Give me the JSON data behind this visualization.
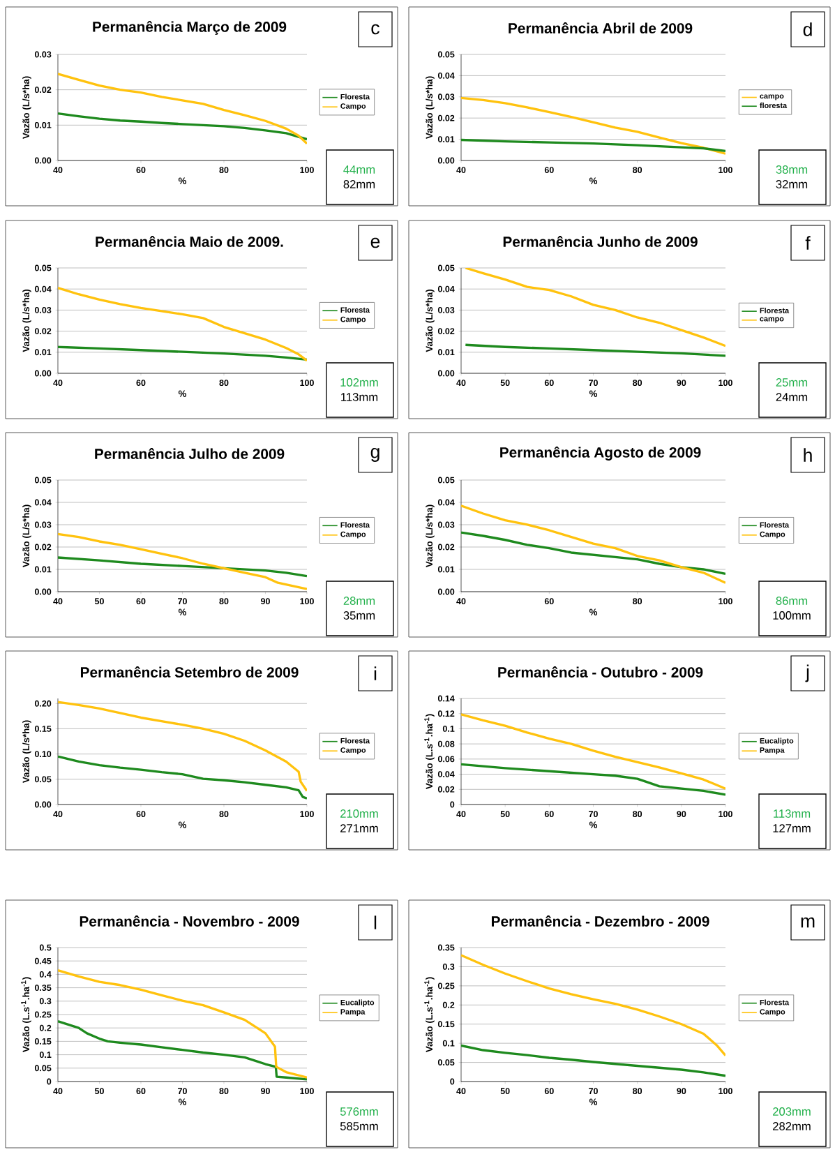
{
  "chart_data": [
    {
      "type": "line",
      "title": "Permanência  Março  de  2009",
      "xlabel": "%",
      "ylabel": "Vazão  (L/s*ha)",
      "xlim": [
        40,
        100
      ],
      "ylim": [
        0,
        0.03
      ],
      "xticks": [
        40,
        60,
        80,
        100
      ],
      "yticks": [
        {
          "value": 0,
          "label": "0.00"
        },
        {
          "value": 0.01,
          "label": "0.01"
        },
        {
          "value": 0.02,
          "label": "0.02"
        },
        {
          "value": 0.03,
          "label": "0.03"
        }
      ],
      "grid": "y",
      "legend": "right",
      "annotations": [
        "c",
        "44mm",
        "82mm"
      ],
      "series": [
        {
          "name": "Floresta",
          "color": "#1e8a1e",
          "x": [
            40,
            45,
            50,
            55,
            60,
            65,
            70,
            75,
            80,
            85,
            90,
            95,
            100
          ],
          "values": [
            0.0133,
            0.0125,
            0.0118,
            0.0113,
            0.011,
            0.0106,
            0.0103,
            0.01,
            0.0097,
            0.0092,
            0.0085,
            0.0077,
            0.006
          ]
        },
        {
          "name": "Campo",
          "color": "#ffc20e",
          "x": [
            40,
            45,
            50,
            55,
            60,
            65,
            70,
            75,
            80,
            85,
            90,
            95,
            98,
            100
          ],
          "values": [
            0.0245,
            0.0228,
            0.0212,
            0.02,
            0.0192,
            0.018,
            0.017,
            0.016,
            0.0143,
            0.0128,
            0.0112,
            0.009,
            0.007,
            0.0048
          ]
        }
      ]
    },
    {
      "type": "line",
      "title": "Permanência  Abril  de  2009",
      "xlabel": "%",
      "ylabel": "Vazão  (L/s*ha)",
      "xlim": [
        40,
        100
      ],
      "ylim": [
        0,
        0.05
      ],
      "xticks": [
        40,
        60,
        80,
        100
      ],
      "yticks": [
        {
          "value": 0,
          "label": "0.00"
        },
        {
          "value": 0.01,
          "label": "0.01"
        },
        {
          "value": 0.02,
          "label": "0.02"
        },
        {
          "value": 0.03,
          "label": "0.03"
        },
        {
          "value": 0.04,
          "label": "0.04"
        },
        {
          "value": 0.05,
          "label": "0.05"
        }
      ],
      "grid": "y",
      "legend": "right",
      "annotations": [
        "d",
        "38mm",
        "32mm"
      ],
      "series": [
        {
          "name": "campo",
          "color": "#ffc20e",
          "x": [
            40,
            45,
            50,
            55,
            60,
            65,
            70,
            75,
            80,
            85,
            90,
            95,
            100
          ],
          "values": [
            0.0295,
            0.0285,
            0.027,
            0.025,
            0.0228,
            0.0205,
            0.018,
            0.0155,
            0.0135,
            0.0108,
            0.0082,
            0.006,
            0.0032
          ]
        },
        {
          "name": "floresta",
          "color": "#1e8a1e",
          "x": [
            40,
            50,
            60,
            70,
            80,
            90,
            95,
            100
          ],
          "values": [
            0.0097,
            0.009,
            0.0085,
            0.008,
            0.0072,
            0.0062,
            0.0057,
            0.0045
          ]
        }
      ]
    },
    {
      "type": "line",
      "title": "Permanência  Maio  de  2009.",
      "xlabel": "%",
      "ylabel": "Vazão  (L/s*ha)",
      "xlim": [
        40,
        100
      ],
      "ylim": [
        0,
        0.05
      ],
      "xticks": [
        40,
        60,
        80,
        100
      ],
      "yticks": [
        {
          "value": 0,
          "label": "0.00"
        },
        {
          "value": 0.01,
          "label": "0.01"
        },
        {
          "value": 0.02,
          "label": "0.02"
        },
        {
          "value": 0.03,
          "label": "0.03"
        },
        {
          "value": 0.04,
          "label": "0.04"
        },
        {
          "value": 0.05,
          "label": "0.05"
        }
      ],
      "grid": "y",
      "legend": "right",
      "annotations": [
        "e",
        "102mm",
        "113mm"
      ],
      "series": [
        {
          "name": "Floresta",
          "color": "#1e8a1e",
          "x": [
            40,
            50,
            60,
            70,
            80,
            90,
            95,
            100
          ],
          "values": [
            0.0125,
            0.0118,
            0.011,
            0.0102,
            0.0094,
            0.0083,
            0.0075,
            0.0065
          ]
        },
        {
          "name": "Campo",
          "color": "#ffc20e",
          "x": [
            40,
            45,
            50,
            55,
            60,
            65,
            70,
            75,
            80,
            85,
            90,
            95,
            98,
            100
          ],
          "values": [
            0.0405,
            0.0375,
            0.035,
            0.0328,
            0.031,
            0.0295,
            0.028,
            0.0262,
            0.022,
            0.019,
            0.016,
            0.012,
            0.009,
            0.006
          ]
        }
      ]
    },
    {
      "type": "line",
      "title": "Permanência  Junho  de  2009",
      "xlabel": "%",
      "ylabel": "Vazão  (L/s*ha)",
      "xlim": [
        40,
        100
      ],
      "ylim": [
        0,
        0.05
      ],
      "xticks": [
        40,
        50,
        60,
        70,
        80,
        90,
        100
      ],
      "yticks": [
        {
          "value": 0,
          "label": "0.00"
        },
        {
          "value": 0.01,
          "label": "0.01"
        },
        {
          "value": 0.02,
          "label": "0.02"
        },
        {
          "value": 0.03,
          "label": "0.03"
        },
        {
          "value": 0.04,
          "label": "0.04"
        },
        {
          "value": 0.05,
          "label": "0.05"
        }
      ],
      "grid": "y",
      "legend": "right",
      "annotations": [
        "f",
        "25mm",
        "24mm"
      ],
      "series": [
        {
          "name": "Floresta",
          "color": "#1e8a1e",
          "x": [
            41,
            50,
            60,
            70,
            80,
            90,
            100
          ],
          "values": [
            0.0135,
            0.0125,
            0.0118,
            0.011,
            0.0102,
            0.0095,
            0.0083
          ]
        },
        {
          "name": "campo",
          "color": "#ffc20e",
          "x": [
            41,
            45,
            50,
            55,
            60,
            65,
            70,
            75,
            80,
            85,
            90,
            95,
            100
          ],
          "values": [
            0.05,
            0.0475,
            0.0445,
            0.041,
            0.0395,
            0.0365,
            0.0325,
            0.03,
            0.0265,
            0.024,
            0.0205,
            0.017,
            0.013
          ]
        }
      ]
    },
    {
      "type": "line",
      "title": "Permanência  Julho  de  2009",
      "xlabel": "%",
      "ylabel": "Vazão  (L/s*ha)",
      "xlim": [
        40,
        100
      ],
      "ylim": [
        0,
        0.05
      ],
      "xticks": [
        40,
        50,
        60,
        70,
        80,
        90,
        100
      ],
      "yticks": [
        {
          "value": 0,
          "label": "0.00"
        },
        {
          "value": 0.01,
          "label": "0.01"
        },
        {
          "value": 0.02,
          "label": "0.02"
        },
        {
          "value": 0.03,
          "label": "0.03"
        },
        {
          "value": 0.04,
          "label": "0.04"
        },
        {
          "value": 0.05,
          "label": "0.05"
        }
      ],
      "grid": "y",
      "legend": "right",
      "annotations": [
        "g",
        "28mm",
        "35mm"
      ],
      "series": [
        {
          "name": "Floresta",
          "color": "#1e8a1e",
          "x": [
            40,
            50,
            60,
            70,
            80,
            90,
            95,
            100
          ],
          "values": [
            0.0153,
            0.014,
            0.0125,
            0.0115,
            0.0105,
            0.0095,
            0.0085,
            0.007
          ]
        },
        {
          "name": "Campo",
          "color": "#ffc20e",
          "x": [
            40,
            45,
            50,
            55,
            60,
            65,
            70,
            75,
            80,
            85,
            90,
            93,
            100
          ],
          "values": [
            0.0258,
            0.0245,
            0.0225,
            0.021,
            0.019,
            0.017,
            0.015,
            0.0125,
            0.0105,
            0.0085,
            0.0065,
            0.004,
            0.0012
          ]
        }
      ]
    },
    {
      "type": "line",
      "title": "Permanência  Agosto  de  2009",
      "xlabel": "%",
      "ylabel": "Vazão  (L/s*ha)",
      "xlim": [
        40,
        100
      ],
      "ylim": [
        0,
        0.05
      ],
      "xticks": [
        40,
        60,
        80,
        100
      ],
      "yticks": [
        {
          "value": 0,
          "label": "0.00"
        },
        {
          "value": 0.01,
          "label": "0.01"
        },
        {
          "value": 0.02,
          "label": "0.02"
        },
        {
          "value": 0.03,
          "label": "0.03"
        },
        {
          "value": 0.04,
          "label": "0.04"
        },
        {
          "value": 0.05,
          "label": "0.05"
        }
      ],
      "grid": "y",
      "legend": "right",
      "annotations": [
        "h",
        "86mm",
        "100mm"
      ],
      "series": [
        {
          "name": "Floresta",
          "color": "#1e8a1e",
          "x": [
            40,
            45,
            50,
            55,
            60,
            65,
            70,
            75,
            80,
            85,
            90,
            95,
            100
          ],
          "values": [
            0.0265,
            0.025,
            0.0232,
            0.021,
            0.0195,
            0.0175,
            0.0165,
            0.0155,
            0.0145,
            0.0125,
            0.011,
            0.01,
            0.008
          ]
        },
        {
          "name": "Campo",
          "color": "#ffc20e",
          "x": [
            40,
            45,
            50,
            55,
            60,
            65,
            70,
            75,
            80,
            85,
            90,
            95,
            100
          ],
          "values": [
            0.0385,
            0.035,
            0.032,
            0.03,
            0.0275,
            0.0245,
            0.0215,
            0.0195,
            0.016,
            0.014,
            0.011,
            0.0085,
            0.004
          ]
        }
      ]
    },
    {
      "type": "line",
      "title": "Permanência  Setembro  de  2009",
      "xlabel": "%",
      "ylabel": "Vazão  (L/s*ha)",
      "xlim": [
        40,
        100
      ],
      "ylim": [
        0,
        0.21
      ],
      "xticks": [
        40,
        60,
        80,
        100
      ],
      "yticks": [
        {
          "value": 0,
          "label": "0.00"
        },
        {
          "value": 0.05,
          "label": "0.05"
        },
        {
          "value": 0.1,
          "label": "0.10"
        },
        {
          "value": 0.15,
          "label": "0.15"
        },
        {
          "value": 0.2,
          "label": "0.20"
        }
      ],
      "grid": "y",
      "legend": "right",
      "annotations": [
        "i",
        "210mm",
        "271mm"
      ],
      "series": [
        {
          "name": "Floresta",
          "color": "#1e8a1e",
          "x": [
            40,
            45,
            50,
            55,
            60,
            65,
            70,
            75,
            80,
            85,
            90,
            95,
            98,
            99,
            100
          ],
          "values": [
            0.095,
            0.085,
            0.078,
            0.073,
            0.069,
            0.064,
            0.06,
            0.051,
            0.048,
            0.044,
            0.039,
            0.034,
            0.028,
            0.015,
            0.012
          ]
        },
        {
          "name": "Campo",
          "color": "#ffc20e",
          "x": [
            40,
            45,
            50,
            55,
            60,
            65,
            70,
            75,
            80,
            85,
            90,
            95,
            98,
            98.5,
            100
          ],
          "values": [
            0.203,
            0.197,
            0.19,
            0.181,
            0.172,
            0.165,
            0.158,
            0.15,
            0.14,
            0.126,
            0.107,
            0.085,
            0.065,
            0.045,
            0.027
          ]
        }
      ]
    },
    {
      "type": "line",
      "title": "Permanência  -  Outubro  -  2009",
      "xlabel": "%",
      "ylabel": "Vazão  (L.s$^{-1}$.ha$^{-1}$)",
      "xlim": [
        40,
        100
      ],
      "ylim": [
        0,
        0.14
      ],
      "xticks": [
        40,
        50,
        60,
        70,
        80,
        90,
        100
      ],
      "yticks": [
        0,
        0.02,
        0.04,
        0.06,
        0.08,
        0.1,
        0.12,
        0.14
      ],
      "grid": "y",
      "legend": "right",
      "annotations": [
        "j",
        "113mm",
        "127mm"
      ],
      "series": [
        {
          "name": "Eucalipto",
          "color": "#1e8a1e",
          "x": [
            40,
            50,
            60,
            70,
            75,
            80,
            82,
            85,
            90,
            95,
            100
          ],
          "values": [
            0.053,
            0.048,
            0.044,
            0.04,
            0.038,
            0.034,
            0.03,
            0.024,
            0.021,
            0.018,
            0.013
          ]
        },
        {
          "name": "Pampa",
          "color": "#ffc20e",
          "x": [
            40,
            45,
            50,
            55,
            60,
            65,
            70,
            75,
            80,
            85,
            90,
            95,
            100
          ],
          "values": [
            0.119,
            0.111,
            0.104,
            0.095,
            0.087,
            0.08,
            0.071,
            0.063,
            0.056,
            0.049,
            0.041,
            0.033,
            0.021
          ]
        }
      ]
    },
    {
      "type": "line",
      "title": "Permanência  -  Novembro  -  2009",
      "xlabel": "%",
      "ylabel": "Vazão  (L.s$^{-1}$.ha$^{-1}$)",
      "xlim": [
        40,
        100
      ],
      "ylim": [
        0,
        0.5
      ],
      "xticks": [
        40,
        50,
        60,
        70,
        80,
        90,
        100
      ],
      "yticks": [
        0,
        0.05,
        0.1,
        0.15,
        0.2,
        0.25,
        0.3,
        0.35,
        0.4,
        0.45,
        0.5
      ],
      "grid": "y",
      "legend": "right",
      "annotations": [
        "l",
        "576mm",
        "585mm"
      ],
      "series": [
        {
          "name": "Eucalipto",
          "color": "#1e8a1e",
          "x": [
            40,
            45,
            47,
            50,
            52,
            55,
            60,
            65,
            70,
            75,
            80,
            85,
            88,
            90,
            92.5,
            92.7,
            95,
            100
          ],
          "values": [
            0.225,
            0.2,
            0.18,
            0.16,
            0.15,
            0.145,
            0.138,
            0.128,
            0.118,
            0.108,
            0.1,
            0.09,
            0.075,
            0.065,
            0.055,
            0.018,
            0.015,
            0.008
          ]
        },
        {
          "name": "Pampa",
          "color": "#ffc20e",
          "x": [
            40,
            45,
            50,
            55,
            60,
            65,
            70,
            75,
            80,
            85,
            88,
            90,
            92.3,
            92.6,
            95,
            100
          ],
          "values": [
            0.415,
            0.392,
            0.372,
            0.36,
            0.343,
            0.322,
            0.302,
            0.285,
            0.258,
            0.23,
            0.2,
            0.18,
            0.13,
            0.055,
            0.035,
            0.015
          ]
        }
      ]
    },
    {
      "type": "line",
      "title": "Permanência  -  Dezembro  -  2009",
      "xlabel": "%",
      "ylabel": "Vazão  (L.s$^{-1}$.ha$^{-1}$)",
      "xlim": [
        40,
        100
      ],
      "ylim": [
        0,
        0.35
      ],
      "xticks": [
        40,
        50,
        60,
        70,
        80,
        90,
        100
      ],
      "yticks": [
        0,
        0.05,
        0.1,
        0.15,
        0.2,
        0.25,
        0.3,
        0.35
      ],
      "grid": "y",
      "legend": "right",
      "annotations": [
        "m",
        "203mm",
        "282mm"
      ],
      "series": [
        {
          "name": "Floresta",
          "color": "#1e8a1e",
          "x": [
            40,
            45,
            50,
            55,
            60,
            65,
            70,
            75,
            80,
            85,
            90,
            95,
            100
          ],
          "values": [
            0.094,
            0.082,
            0.075,
            0.069,
            0.062,
            0.057,
            0.051,
            0.046,
            0.041,
            0.036,
            0.031,
            0.024,
            0.015
          ]
        },
        {
          "name": "Campo",
          "color": "#ffc20e",
          "x": [
            40,
            45,
            50,
            55,
            60,
            65,
            70,
            75,
            80,
            85,
            90,
            95,
            98,
            100
          ],
          "values": [
            0.33,
            0.305,
            0.282,
            0.262,
            0.243,
            0.228,
            0.215,
            0.203,
            0.188,
            0.17,
            0.15,
            0.125,
            0.095,
            0.068
          ]
        }
      ]
    }
  ]
}
